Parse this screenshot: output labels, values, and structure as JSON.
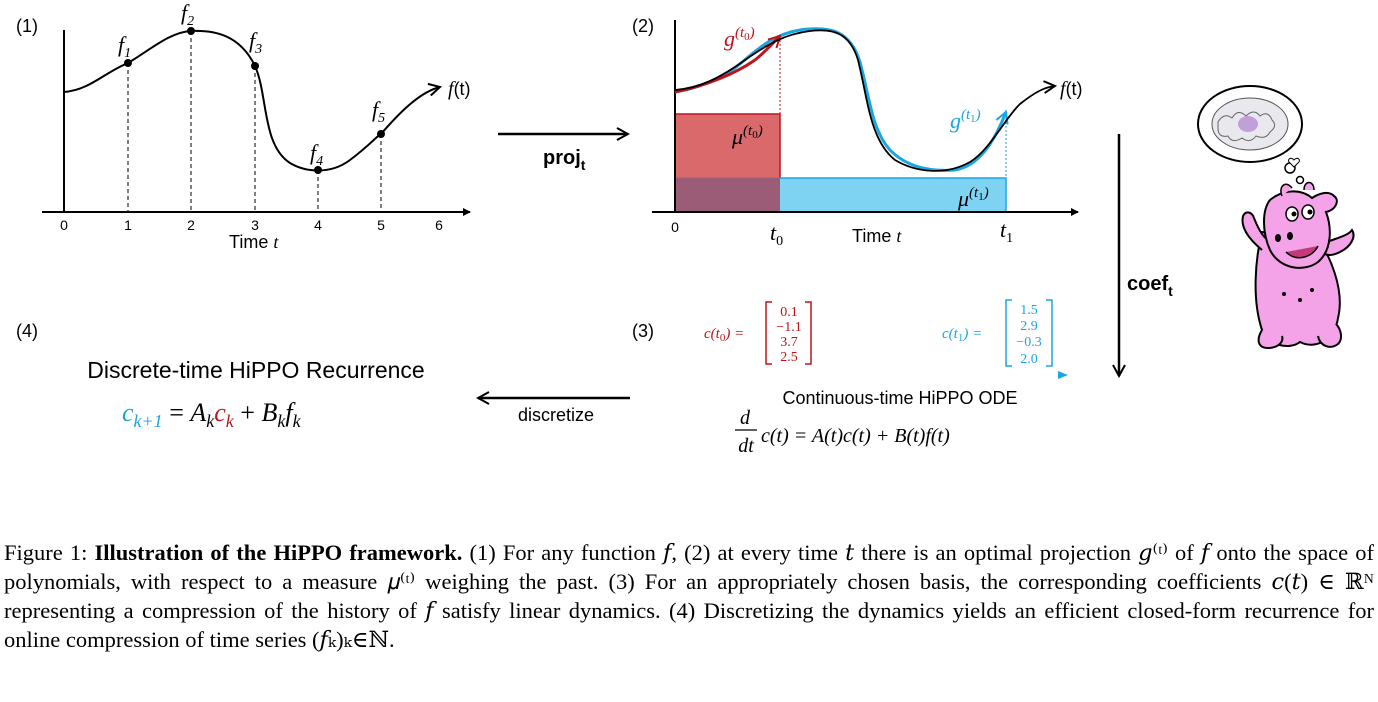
{
  "panels": {
    "p1": {
      "label": "(1)",
      "xticks": [
        "0",
        "1",
        "2",
        "3",
        "4",
        "5",
        "6"
      ],
      "xlabel": "Time",
      "xlabel_var": "t",
      "curve_label": "f",
      "curve_label_arg": "(t)",
      "points": [
        "f",
        "f",
        "f",
        "f",
        "f"
      ],
      "point_subs": [
        "1",
        "2",
        "3",
        "4",
        "5"
      ]
    },
    "p2": {
      "label": "(2)",
      "xtick_zero": "0",
      "t0": "t",
      "t0_sub": "0",
      "t1": "t",
      "t1_sub": "1",
      "xlabel": "Time",
      "xlabel_var": "t",
      "curve_label": "f",
      "curve_label_arg": "(t)",
      "g0": "g",
      "g0_sup": "(t",
      "g0_sup_sub": "0",
      "g1": "g",
      "g1_sup": "(t",
      "g1_sup_sub": "1",
      "mu0": "μ",
      "mu0_sup": "(t",
      "mu0_sub": "0",
      "mu1": "μ",
      "mu1_arg": "(t",
      "mu1_sub": "1"
    },
    "p3": {
      "label": "(3)",
      "c0_label": "c(t",
      "c0_sub": "0",
      "c0_values": [
        "0.1",
        "−1.1",
        "3.7",
        "2.5"
      ],
      "c1_label": "c(t",
      "c1_sub": "1",
      "c1_values": [
        "1.5",
        "2.9",
        "−0.3",
        "2.0"
      ],
      "ode_title": "Continuous-time HiPPO ODE",
      "ode_eq": "c(t) = A(t)c(t) + B(t)f(t)",
      "ode_frac_num": "d",
      "ode_frac_den": "dt"
    },
    "p4": {
      "label": "(4)",
      "title": "Discrete-time HiPPO Recurrence",
      "eq_c_next": "c",
      "eq_c_next_sub": "k+1",
      "eq_eq": " = ",
      "eq_A": "A",
      "eq_A_sub": "k",
      "eq_c": "c",
      "eq_c_sub": "k",
      "eq_plus": " + ",
      "eq_B": "B",
      "eq_B_sub": "k",
      "eq_f": "f",
      "eq_f_sub": "k"
    }
  },
  "arrows": {
    "proj": "proj",
    "proj_sub": "t",
    "coef": "coef",
    "coef_sub": "t",
    "discretize": "discretize"
  },
  "caption": {
    "prefix": "Figure 1: ",
    "bold": "Illustration of the HiPPO framework.",
    "body": " (1) For any function 𝑓, (2) at every time 𝑡 there is an optimal projection 𝑔⁽ᵗ⁾ of 𝑓 onto the space of polynomials, with respect to a measure 𝜇⁽ᵗ⁾ weighing the past. (3) For an appropriately chosen basis, the corresponding coefficients 𝑐(𝑡) ∈ ℝᴺ representing a compression of the history of 𝑓 satisfy linear dynamics. (4) Discretizing the dynamics yields an efficient closed-form recurrence for online compression of time series (𝑓ₖ)ₖ∈ℕ."
  },
  "colors": {
    "red": "#c0141c",
    "blue": "#1aa6e0",
    "red_fill": "#d9696b",
    "blue_fill": "#7ed3f3",
    "overlap_fill": "#9b5c78",
    "hippo_pink": "#f4a3e9"
  },
  "icons": [
    "hippo-icon",
    "brain-thought-bubble-icon"
  ]
}
